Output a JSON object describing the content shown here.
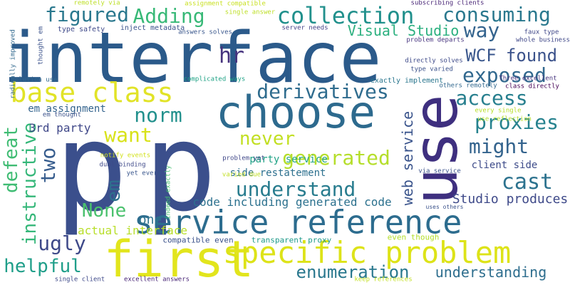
{
  "words": [
    {
      "text": "interface",
      "color": "#2b5a8a"
    },
    {
      "text": "p",
      "color": "#3b4f8c"
    },
    {
      "text": "p",
      "color": "#3b4f8c"
    },
    {
      "text": "choose",
      "color": "#2d6a8e"
    },
    {
      "text": "use",
      "color": "#3e2f7f"
    },
    {
      "text": "first",
      "color": "#e2e51c"
    },
    {
      "text": "service reference",
      "color": "#2c6c8e"
    },
    {
      "text": "specific problem",
      "color": "#dde318"
    },
    {
      "text": "base class",
      "color": "#e1e327"
    },
    {
      "text": "collection",
      "color": "#21908c"
    },
    {
      "text": "consuming",
      "color": "#2a788e"
    },
    {
      "text": "figured",
      "color": "#2a788e"
    },
    {
      "text": "Adding",
      "color": "#38b977"
    },
    {
      "text": "way",
      "color": "#33638d"
    },
    {
      "text": "WCF",
      "color": "#39568c"
    },
    {
      "text": "found",
      "color": "#3b528b"
    },
    {
      "text": "exposed",
      "color": "#31688e"
    },
    {
      "text": "hr",
      "color": "#46337e"
    },
    {
      "text": "Visual Studio",
      "color": "#2bb07f"
    },
    {
      "text": "derivatives",
      "color": "#2f6c8e"
    },
    {
      "text": "access",
      "color": "#277f8e"
    },
    {
      "text": "proxies",
      "color": "#26828e"
    },
    {
      "text": "norm",
      "color": "#21908c"
    },
    {
      "text": "want",
      "color": "#d8e219"
    },
    {
      "text": "never",
      "color": "#c2df23"
    },
    {
      "text": "generated",
      "color": "#b5de2b"
    },
    {
      "text": "might",
      "color": "#33638d"
    },
    {
      "text": "cast",
      "color": "#2c728e"
    },
    {
      "text": "understand",
      "color": "#287c8e"
    },
    {
      "text": "defeat",
      "color": "#3fbc73"
    },
    {
      "text": "instructive",
      "color": "#35b779"
    },
    {
      "text": "two",
      "color": "#365c8d"
    },
    {
      "text": "em",
      "color": "#2d708e"
    },
    {
      "text": "None",
      "color": "#4ac16d"
    },
    {
      "text": "one",
      "color": "#2c728e"
    },
    {
      "text": "ugly",
      "color": "#3e4989"
    },
    {
      "text": "helpful",
      "color": "#1f9e89"
    },
    {
      "text": "enumeration",
      "color": "#2a788e"
    },
    {
      "text": "understanding",
      "color": "#2e6e8e"
    },
    {
      "text": "web service",
      "color": "#3a548c"
    },
    {
      "text": "Studio produces",
      "color": "#3e4989"
    },
    {
      "text": "code including generated code",
      "color": "#2c718e"
    },
    {
      "text": "actual interface",
      "color": "#b8de29"
    },
    {
      "text": "3rd party",
      "color": "#3f4788"
    },
    {
      "text": "party service",
      "color": "#20a386"
    },
    {
      "text": "side restatement",
      "color": "#2d708e"
    },
    {
      "text": "client side",
      "color": "#3e4c8a"
    },
    {
      "text": "em assignment",
      "color": "#33638d"
    },
    {
      "text": "transparent proxy",
      "color": "#1f9a8a"
    },
    {
      "text": "compatible even",
      "color": "#3b528b"
    },
    {
      "text": "even though",
      "color": "#b5de2b"
    },
    {
      "text": "remotely via",
      "color": "#bddf26"
    },
    {
      "text": "assignment compatible",
      "color": "#c8e020"
    },
    {
      "text": "subscribing clients",
      "color": "#482576"
    },
    {
      "text": "single answer",
      "color": "#bddf26"
    },
    {
      "text": "type safety",
      "color": "#3e4989"
    },
    {
      "text": "inject metadata",
      "color": "#3b528b"
    },
    {
      "text": "answers solves",
      "color": "#39568c"
    },
    {
      "text": "server needs",
      "color": "#424086"
    },
    {
      "text": "faux type",
      "color": "#3f4788"
    },
    {
      "text": "whole business",
      "color": "#3f4788"
    },
    {
      "text": "problem departs",
      "color": "#46337e"
    },
    {
      "text": "thought em",
      "color": "#3b528b"
    },
    {
      "text": "radically improved",
      "color": "#31688e"
    },
    {
      "text": "solution use",
      "color": "#31688e"
    },
    {
      "text": "complicated ways",
      "color": "#20a386"
    },
    {
      "text": "directly solves",
      "color": "#3e4a89"
    },
    {
      "text": "type varied",
      "color": "#3b528b"
    },
    {
      "text": "Three excellent",
      "color": "#46337e"
    },
    {
      "text": "exactly implement",
      "color": "#2a768e"
    },
    {
      "text": "others remotely",
      "color": "#31688e"
    },
    {
      "text": "class directly",
      "color": "#440154"
    },
    {
      "text": "every single",
      "color": "#b8de29"
    },
    {
      "text": "use reflection",
      "color": "#b5de2b"
    },
    {
      "text": "em thought",
      "color": "#3b528b"
    },
    {
      "text": "notify events",
      "color": "#d2e21b"
    },
    {
      "text": "dual binding",
      "color": "#3e4989"
    },
    {
      "text": "yet every",
      "color": "#39568c"
    },
    {
      "text": "indeed exactly",
      "color": "#44bf70"
    },
    {
      "text": "problem yet",
      "color": "#3f4788"
    },
    {
      "text": "varied due",
      "color": "#c2df23"
    },
    {
      "text": "via service",
      "color": "#3b528b"
    },
    {
      "text": "uses others",
      "color": "#3b528b"
    },
    {
      "text": "single client",
      "color": "#3e4989"
    },
    {
      "text": "excellent answers",
      "color": "#482576"
    },
    {
      "text": "keep references",
      "color": "#c2df23"
    }
  ]
}
